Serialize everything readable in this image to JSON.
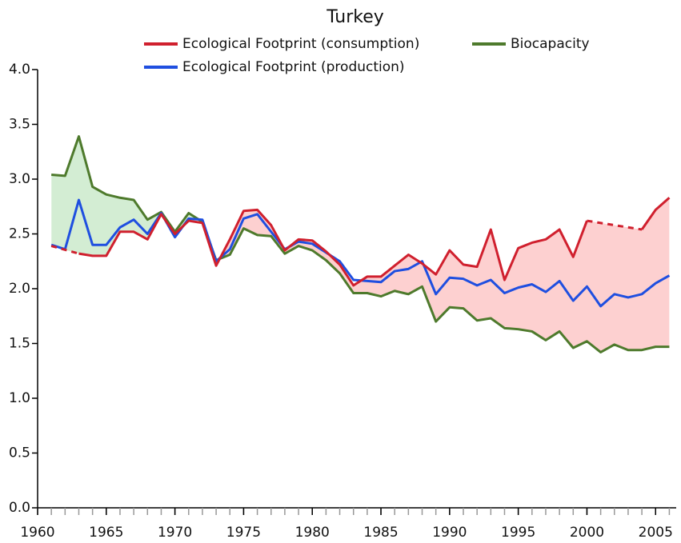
{
  "chart_data": {
    "type": "line",
    "title": "Turkey",
    "x": [
      1961,
      1962,
      1963,
      1964,
      1965,
      1966,
      1967,
      1968,
      1969,
      1970,
      1971,
      1972,
      1973,
      1974,
      1975,
      1976,
      1977,
      1978,
      1979,
      1980,
      1981,
      1982,
      1983,
      1984,
      1985,
      1986,
      1987,
      1988,
      1989,
      1990,
      1991,
      1992,
      1993,
      1994,
      1995,
      1996,
      1997,
      1998,
      1999,
      2000,
      2001,
      2002,
      2003,
      2004,
      2005,
      2006
    ],
    "series": [
      {
        "name": "Ecological Footprint (consumption)",
        "color": "#d0202e",
        "values": [
          2.39,
          null,
          2.32,
          2.3,
          2.3,
          2.52,
          2.52,
          2.45,
          2.68,
          2.5,
          2.62,
          2.6,
          2.21,
          2.45,
          2.71,
          2.72,
          2.58,
          2.35,
          2.45,
          2.44,
          2.34,
          2.22,
          2.03,
          2.11,
          2.11,
          2.21,
          2.31,
          2.23,
          2.13,
          2.35,
          2.22,
          2.2,
          2.54,
          2.08,
          2.37,
          2.42,
          2.45,
          2.54,
          2.29,
          2.62,
          null,
          null,
          null,
          2.54,
          2.72,
          2.83
        ]
      },
      {
        "name": "Biocapacity",
        "color": "#4e7a2c",
        "values": [
          3.04,
          3.03,
          3.39,
          2.93,
          2.86,
          2.83,
          2.81,
          2.63,
          2.7,
          2.52,
          2.69,
          2.61,
          2.26,
          2.31,
          2.55,
          2.49,
          2.48,
          2.32,
          2.39,
          2.35,
          2.26,
          2.14,
          1.96,
          1.96,
          1.93,
          1.98,
          1.95,
          2.02,
          1.7,
          1.83,
          1.82,
          1.71,
          1.73,
          1.64,
          1.63,
          1.61,
          1.53,
          1.61,
          1.46,
          1.52,
          1.42,
          1.49,
          1.44,
          1.44,
          1.47,
          1.47
        ]
      },
      {
        "name": "Ecological Footprint (production)",
        "color": "#1f4fe0",
        "values": [
          2.4,
          2.36,
          2.81,
          2.4,
          2.4,
          2.56,
          2.63,
          2.5,
          2.69,
          2.47,
          2.64,
          2.63,
          2.25,
          2.36,
          2.64,
          2.68,
          2.52,
          2.36,
          2.43,
          2.41,
          2.33,
          2.25,
          2.08,
          2.07,
          2.06,
          2.16,
          2.18,
          2.25,
          1.95,
          2.1,
          2.09,
          2.03,
          2.08,
          1.96,
          2.01,
          2.04,
          1.97,
          2.07,
          1.89,
          2.02,
          1.84,
          1.95,
          1.92,
          1.95,
          2.05,
          2.12
        ]
      }
    ],
    "gap_style": "dashed",
    "fill_between": {
      "series": [
        0,
        1
      ],
      "deficit_color": "#fdd0d0",
      "reserve_color": "#d3edd3"
    },
    "xlim": [
      1960,
      2006.5
    ],
    "xticks": [
      1960,
      1965,
      1970,
      1975,
      1980,
      1985,
      1990,
      1995,
      2000,
      2005
    ],
    "xticks_minor": [
      1960,
      1961,
      1962,
      1963,
      1964,
      1965,
      1966,
      1967,
      1968,
      1969,
      1970,
      1971,
      1972,
      1973,
      1974,
      1975,
      1976,
      1977,
      1978,
      1979,
      1980,
      1981,
      1982,
      1983,
      1984,
      1985,
      1986,
      1987,
      1988,
      1989,
      1990,
      1991,
      1992,
      1993,
      1994,
      1995,
      1996,
      1997,
      1998,
      1999,
      2000,
      2001,
      2002,
      2003,
      2004,
      2005,
      2006
    ],
    "ylim": [
      0,
      4
    ],
    "yticks": [
      {
        "value": 0,
        "label": "0.0"
      },
      {
        "value": 0.5,
        "label": "0.5"
      },
      {
        "value": 1,
        "label": "1.0"
      },
      {
        "value": 1.5,
        "label": "1.5"
      },
      {
        "value": 2,
        "label": "2.0"
      },
      {
        "value": 2.5,
        "label": "2.5"
      },
      {
        "value": 3,
        "label": "3.0"
      },
      {
        "value": 3.5,
        "label": "3.5"
      },
      {
        "value": 4,
        "label": "4.0"
      }
    ]
  }
}
